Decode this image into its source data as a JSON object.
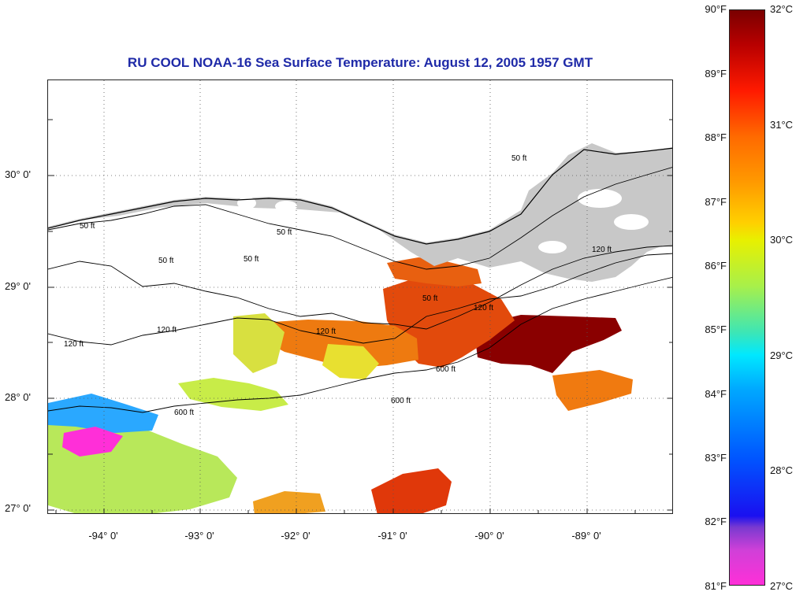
{
  "title": "RU COOL  NOAA-16  Sea Surface Temperature:  August 12, 2005 1957 GMT",
  "map": {
    "land_color": "#c8c8c8",
    "contour_labels": [
      "50 ft",
      "50 ft",
      "50 ft",
      "50 ft",
      "50 ft",
      "120 ft",
      "120 ft",
      "120 ft",
      "120 ft",
      "600 ft",
      "600 ft",
      "600 ft",
      "50 ft",
      "120 ft"
    ],
    "lat_labels": [
      "30° 0'",
      "29° 0'",
      "28° 0'",
      "27° 0'"
    ],
    "lon_labels": [
      "-94° 0'",
      "-93° 0'",
      "-92° 0'",
      "-91° 0'",
      "-90° 0'",
      "-89° 0'"
    ]
  },
  "colorbar": {
    "fahrenheit": [
      "90°F",
      "89°F",
      "88°F",
      "87°F",
      "86°F",
      "85°F",
      "84°F",
      "83°F",
      "82°F",
      "81°F"
    ],
    "celsius": [
      "32°C",
      "31°C",
      "30°C",
      "29°C",
      "28°C",
      "27°C"
    ],
    "colors": [
      "#7a0000",
      "#ff1a00",
      "#ff9a00",
      "#e8f000",
      "#3ee6b4",
      "#00a8ff",
      "#0055ff",
      "#ff2fd8"
    ]
  }
}
